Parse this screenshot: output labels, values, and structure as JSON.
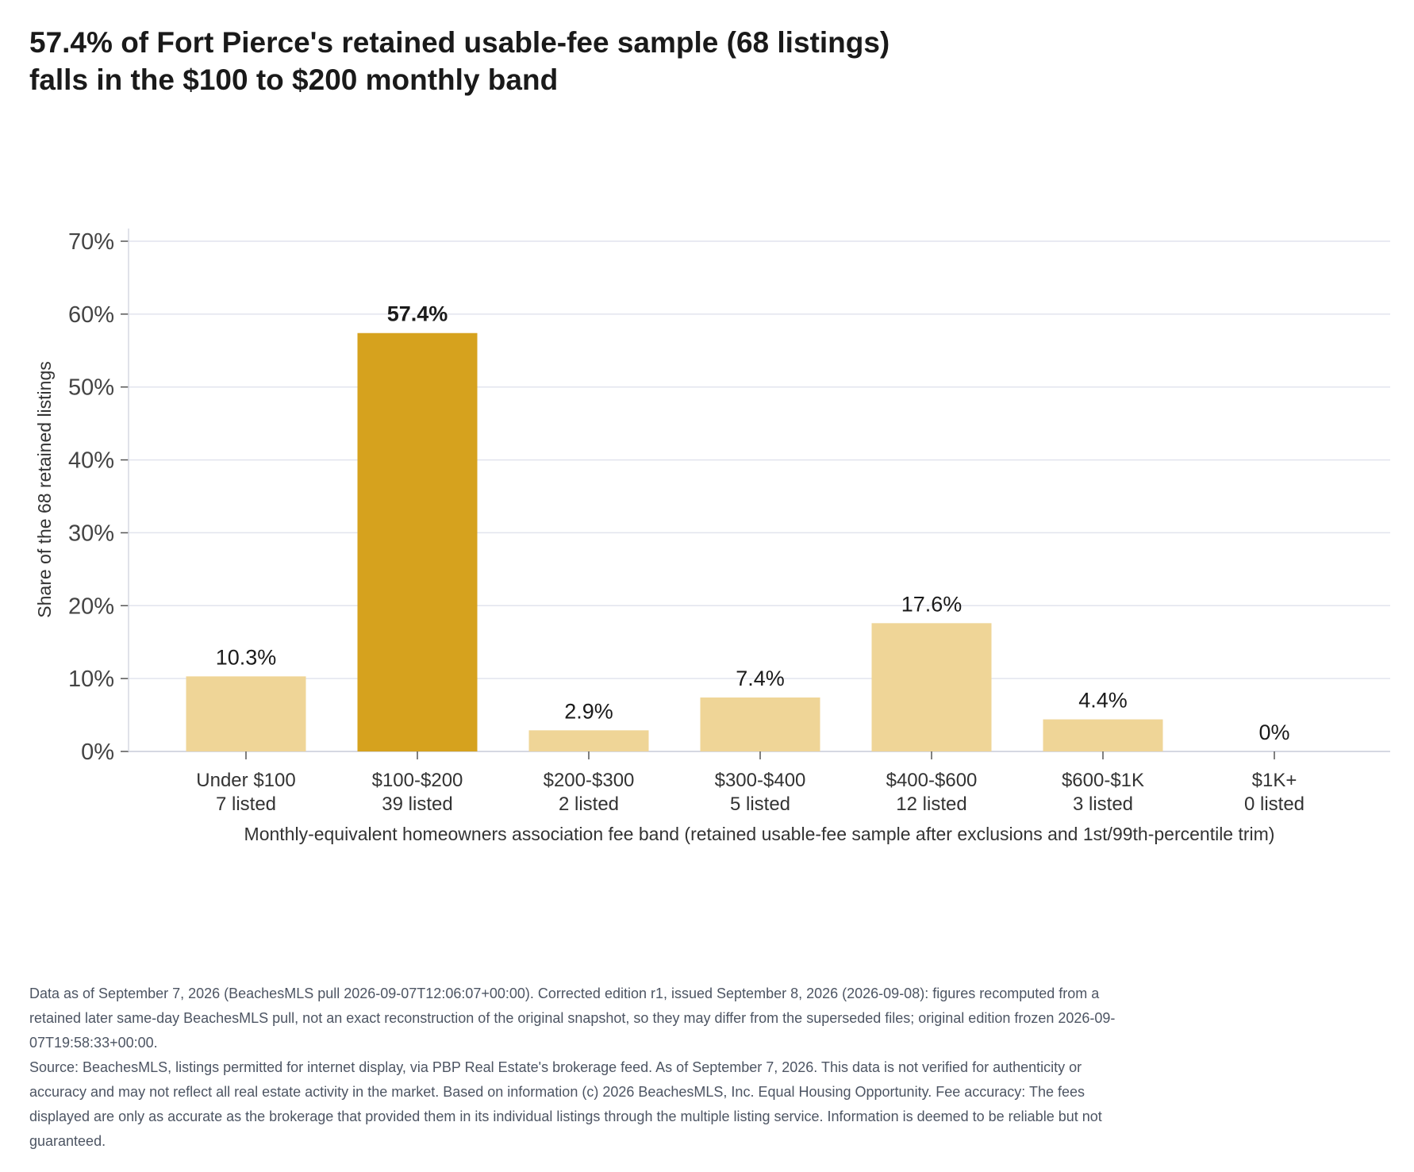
{
  "title_lines": [
    "57.4% of Fort Pierce's retained usable-fee sample (68 listings)",
    "falls in the $100 to $200 monthly band"
  ],
  "chart_data": {
    "type": "bar",
    "title": "57.4% of Fort Pierce's retained usable-fee sample (68 listings) falls in the $100 to $200 monthly band",
    "categories": [
      "Under $100",
      "$100-$200",
      "$200-$300",
      "$300-$400",
      "$400-$600",
      "$600-$1K",
      "$1K+"
    ],
    "counts": [
      "7 listed",
      "39 listed",
      "2 listed",
      "5 listed",
      "12 listed",
      "3 listed",
      "0 listed"
    ],
    "values": [
      10.3,
      57.4,
      2.9,
      7.4,
      17.6,
      4.4,
      0
    ],
    "value_labels": [
      "10.3%",
      "57.4%",
      "2.9%",
      "7.4%",
      "17.6%",
      "4.4%",
      "0%"
    ],
    "highlight_index": 1,
    "ylabel": "Share of the 68 retained listings",
    "xlabel": "Monthly-equivalent homeowners association fee band (retained usable-fee sample after exclusions and 1st/99th-percentile trim)",
    "ylim": [
      0,
      70
    ],
    "yticks": [
      0,
      10,
      20,
      30,
      40,
      50,
      60,
      70
    ],
    "ytick_labels": [
      "0%",
      "10%",
      "20%",
      "30%",
      "40%",
      "50%",
      "60%",
      "70%"
    ],
    "grid": true,
    "colors": {
      "highlight": "#d6a21e",
      "bar": "#efd597",
      "grid": "#e2e4ee",
      "axis": "#d5d8e2"
    }
  },
  "footnotes": [
    "Data as of September 7, 2026 (BeachesMLS pull 2026-09-07T12:06:07+00:00). Corrected edition r1, issued September 8, 2026 (2026-09-08): figures recomputed from a retained later same-day BeachesMLS pull, not an exact reconstruction of the original snapshot, so they may differ from the superseded files; original edition frozen 2026-09-07T19:58:33+00:00.",
    "Source: BeachesMLS, listings permitted for internet display, via PBP Real Estate's brokerage feed. As of September 7, 2026. This data is not verified for authenticity or accuracy and may not reflect all real estate activity in the market. Based on information (c) 2026 BeachesMLS, Inc. Equal Housing Opportunity. Fee accuracy: The fees displayed are only as accurate as the brokerage that provided them in its individual listings through the multiple listing service. Information is deemed to be reliable but not guaranteed."
  ]
}
